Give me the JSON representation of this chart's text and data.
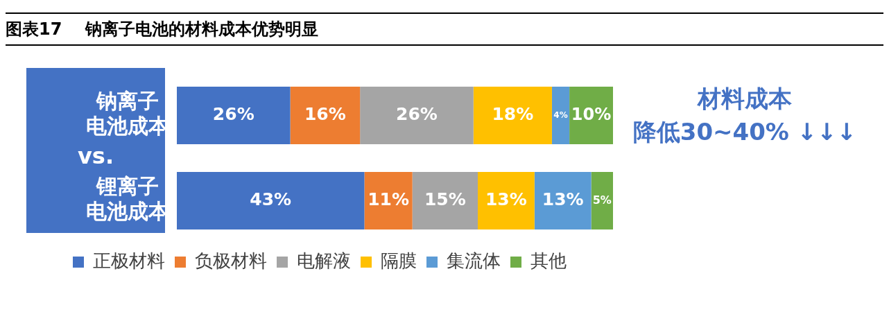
{
  "chart_data": {
    "type": "bar",
    "title": "图表17    钠离子电池的材料成本优势明显",
    "orientation": "horizontal",
    "stacked": true,
    "xlim": [
      0,
      100
    ],
    "legend": "bottom",
    "categories": [
      "钠离子电池成本",
      "锂离子电池成本"
    ],
    "annotations": [
      "vs.",
      "材料成本",
      "降低30~40% ↓↓↓"
    ],
    "series": [
      {
        "name": "正极材料",
        "color": "#4472c4",
        "values": [
          26,
          43
        ],
        "value_labels": [
          "26%",
          "43%"
        ]
      },
      {
        "name": "负极材料",
        "color": "#ed7d31",
        "values": [
          16,
          11
        ],
        "value_labels": [
          "16%",
          "11%"
        ]
      },
      {
        "name": "电解液",
        "color": "#a5a5a5",
        "values": [
          26,
          15
        ],
        "value_labels": [
          "26%",
          "15%"
        ]
      },
      {
        "name": "隔膜",
        "color": "#ffc000",
        "values": [
          18,
          13
        ],
        "value_labels": [
          "18%",
          "13%"
        ]
      },
      {
        "name": "集流体",
        "color": "#5b9bd5",
        "values": [
          4,
          13
        ],
        "value_labels": [
          "4%",
          "13%"
        ]
      },
      {
        "name": "其他",
        "color": "#70ad47",
        "values": [
          10,
          5
        ],
        "value_labels": [
          "10%",
          "5%"
        ]
      }
    ]
  }
}
